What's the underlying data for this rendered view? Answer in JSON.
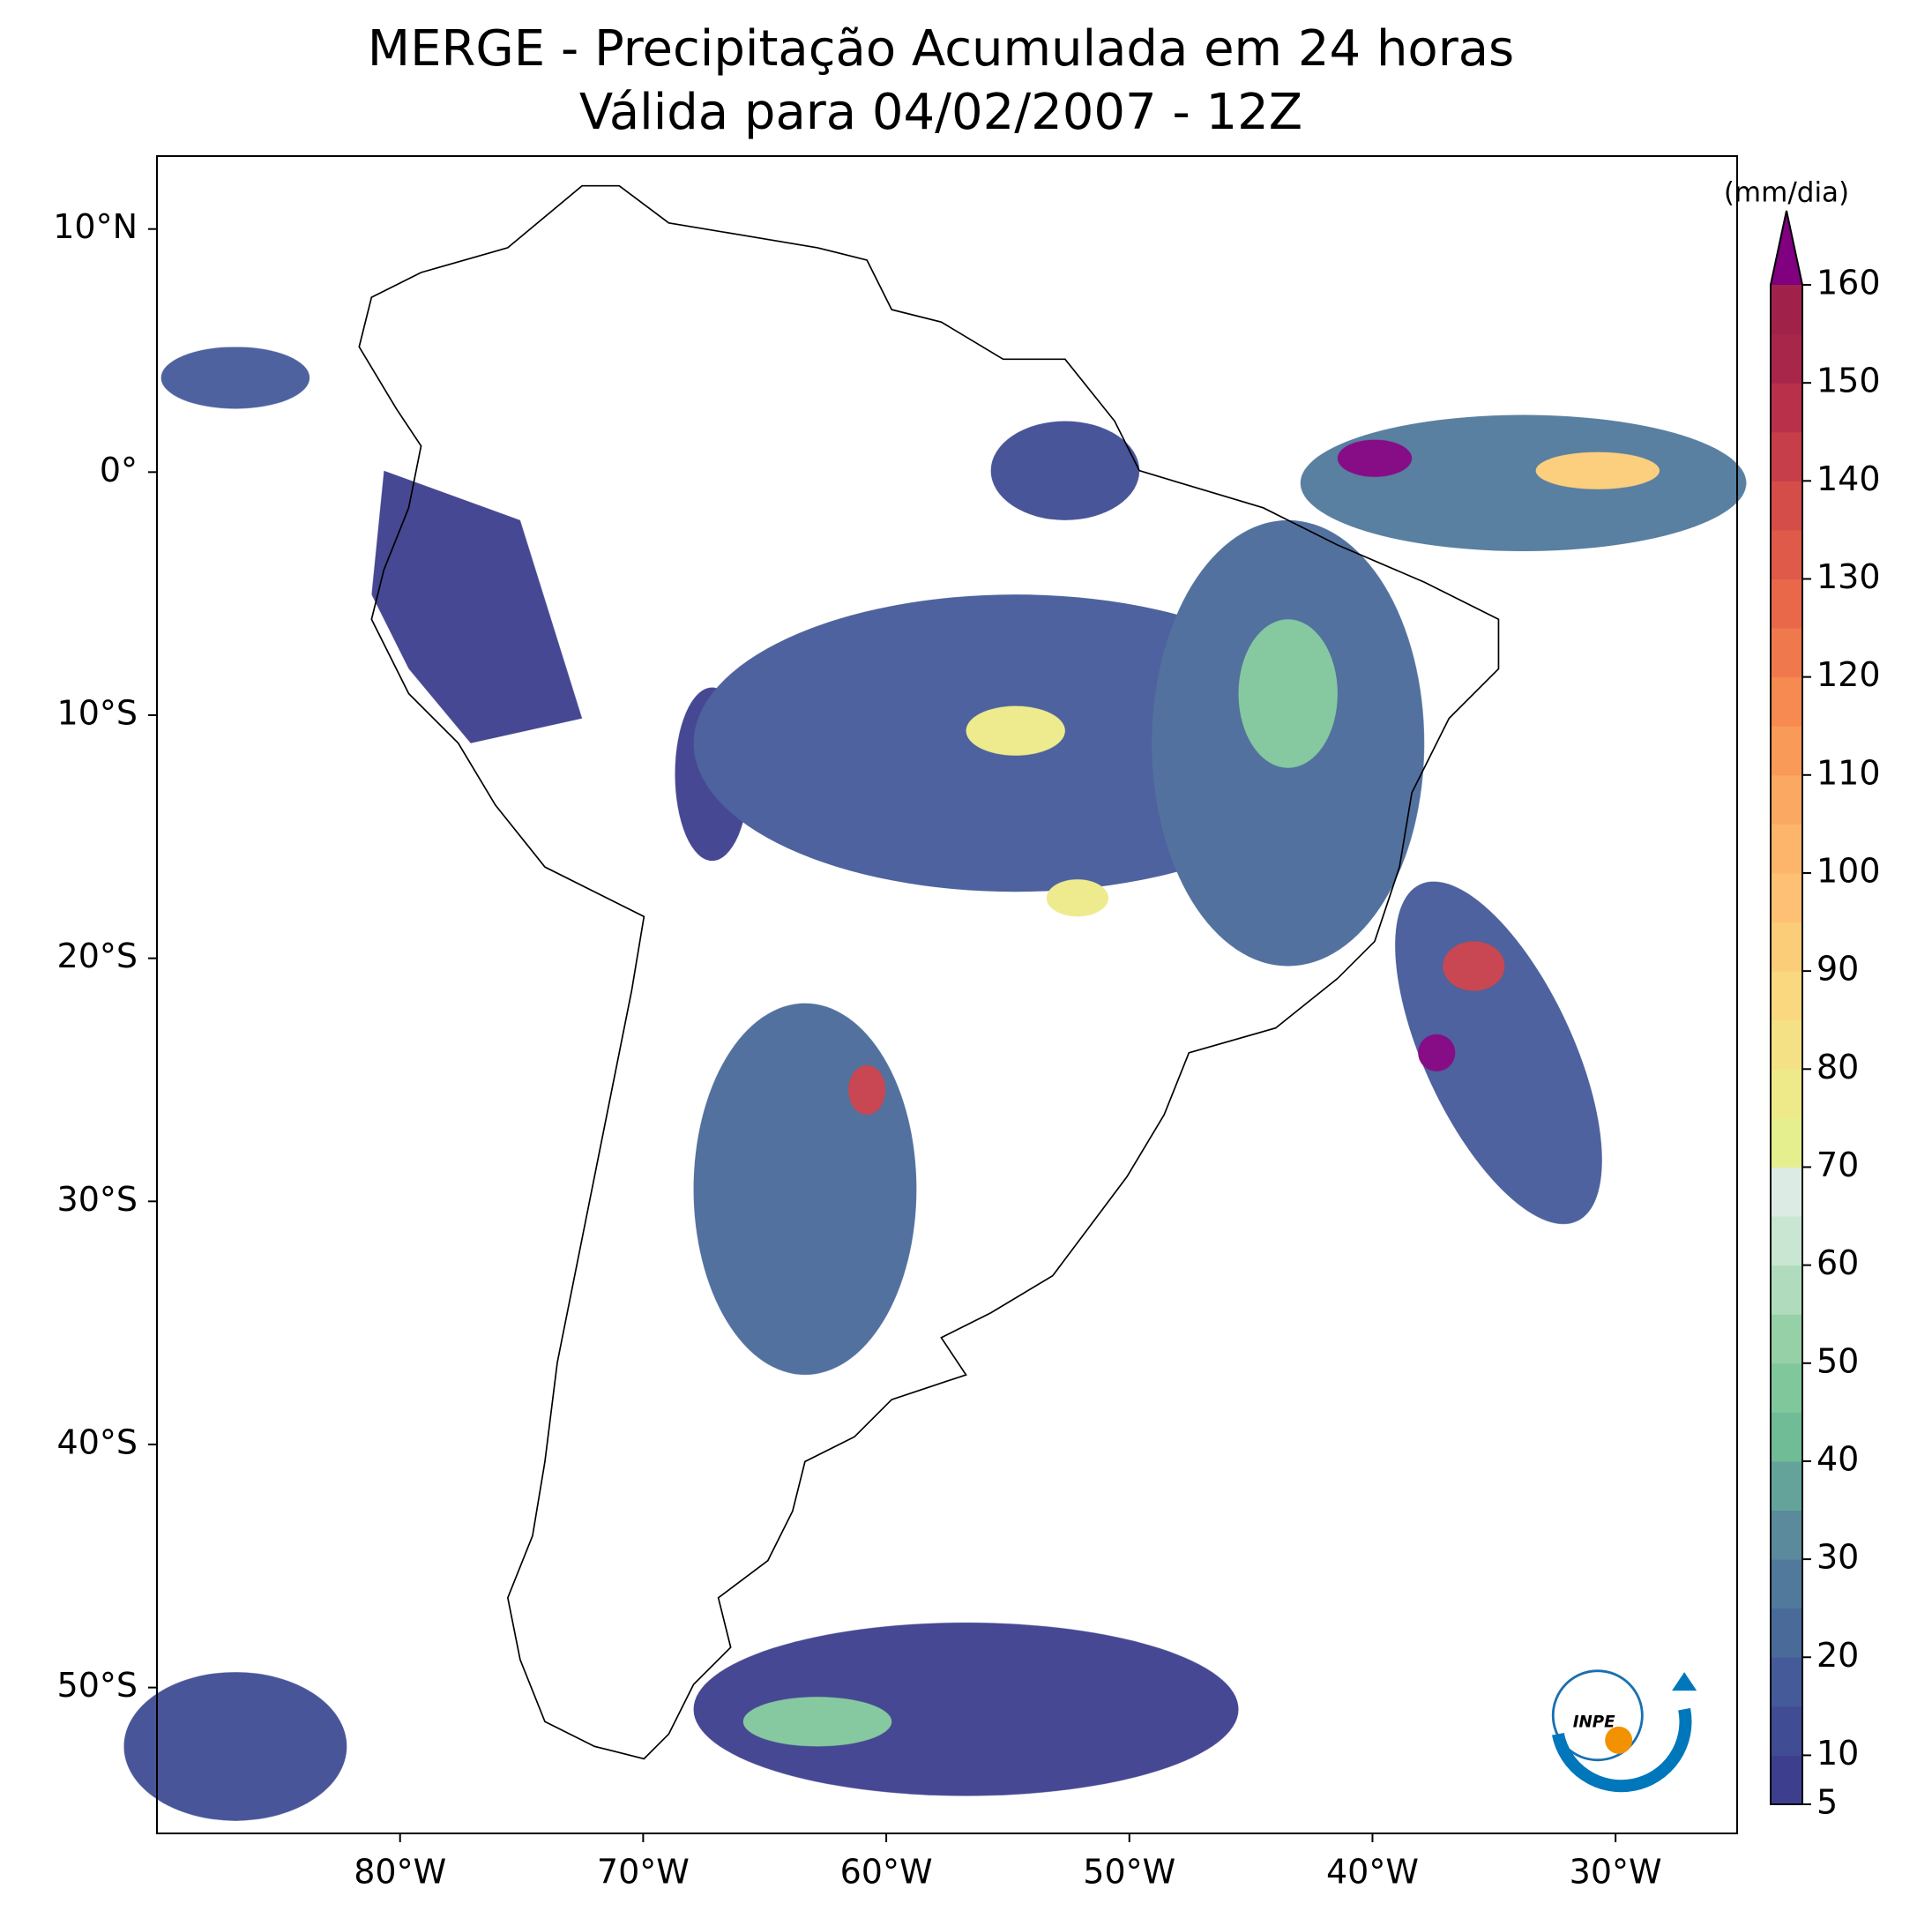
{
  "chart_data": {
    "type": "map",
    "title": "MERGE - Precipitação Acumulada em 24 horas",
    "subtitle": "Válida para 04/02/2007 - 12Z",
    "xlim": [
      -90,
      -25
    ],
    "ylim": [
      -56,
      13
    ],
    "xticks": [
      {
        "value": -80,
        "label": "80°W"
      },
      {
        "value": -70,
        "label": "70°W"
      },
      {
        "value": -60,
        "label": "60°W"
      },
      {
        "value": -50,
        "label": "50°W"
      },
      {
        "value": -40,
        "label": "40°W"
      },
      {
        "value": -30,
        "label": "30°W"
      }
    ],
    "yticks": [
      {
        "value": 10,
        "label": "10°N"
      },
      {
        "value": 0,
        "label": "0°"
      },
      {
        "value": -10,
        "label": "10°S"
      },
      {
        "value": -20,
        "label": "20°S"
      },
      {
        "value": -30,
        "label": "30°S"
      },
      {
        "value": -40,
        "label": "40°S"
      },
      {
        "value": -50,
        "label": "50°S"
      }
    ],
    "colorbar": {
      "label": "(mm/dia)",
      "lim": [
        5,
        160
      ],
      "ticks": [
        5,
        10,
        20,
        30,
        40,
        50,
        60,
        70,
        80,
        90,
        100,
        110,
        120,
        130,
        140,
        150,
        160
      ],
      "colors": [
        "#3d3f8e",
        "#404c94",
        "#445a99",
        "#4a6a9a",
        "#51799c",
        "#5a8a9b",
        "#64a39a",
        "#6fbc97",
        "#80c79c",
        "#96d0a6",
        "#b0dcbd",
        "#c8e6d2",
        "#dcece4",
        "#e5ef8e",
        "#eeea8a",
        "#f4e185",
        "#f9d87f",
        "#fccd78",
        "#fdc074",
        "#fcb56b",
        "#fba962",
        "#f99a58",
        "#f68a51",
        "#ef794c",
        "#e9684a",
        "#df5a48",
        "#d44d48",
        "#c63e49",
        "#b8304a",
        "#a8264a",
        "#a0224a"
      ],
      "extend_color": "#800080"
    },
    "logo_text": "INPE"
  }
}
